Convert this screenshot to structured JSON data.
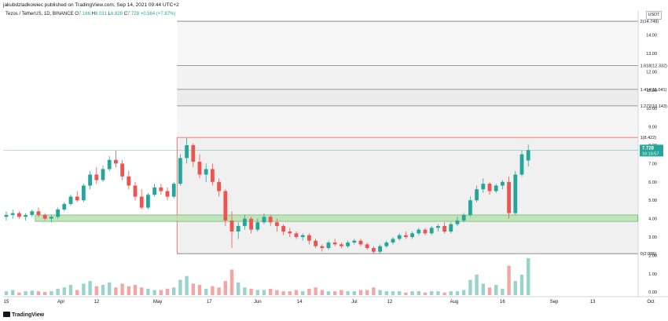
{
  "header": {
    "published": "jakubdzladkowiec published on TradingView.com, Sep 14, 2021 09:44 UTC+2",
    "symbol": "Tezos / TetherUS, 1D, BINANCE",
    "ohlc": {
      "o_label": "O",
      "o": "7.166",
      "h_label": "H",
      "h": "8.031",
      "l_label": "L",
      "l": "6.829",
      "c_label": "C",
      "c": "7.728",
      "change": "+0.564 (+7.87%)"
    },
    "currency": "USDT"
  },
  "footer": {
    "brand": "TradingView"
  },
  "colors": {
    "up": "#26a69a",
    "down": "#ef5350",
    "vol_up": "#9ad3cc",
    "vol_down": "#f5a6a4",
    "zone_fill": "#b7e1b0",
    "zone_stroke": "#4caf50",
    "fib_line": "#787b86",
    "fib_top": "#ef5350",
    "price_line": "#26a69a"
  },
  "chart_data": {
    "type": "candlestick",
    "title": "Tezos / TetherUS, 1D, BINANCE",
    "ylim": [
      -0.2,
      15.2
    ],
    "y_ticks": [
      "0.00",
      "1.00",
      "2.00",
      "3.00",
      "4.00",
      "5.00",
      "6.00",
      "7.00",
      "8.00",
      "9.00",
      "10.00",
      "11.00",
      "12.00",
      "13.00",
      "14.00"
    ],
    "x_ticks": [
      {
        "label": "15",
        "date": "2021-03-15"
      },
      {
        "label": "Apr",
        "date": "2021-04-01"
      },
      {
        "label": "12",
        "date": "2021-04-12"
      },
      {
        "label": "May",
        "date": "2021-05-01"
      },
      {
        "label": "17",
        "date": "2021-05-17"
      },
      {
        "label": "Jun",
        "date": "2021-06-01"
      },
      {
        "label": "14",
        "date": "2021-06-14"
      },
      {
        "label": "Jul",
        "date": "2021-07-01"
      },
      {
        "label": "12",
        "date": "2021-07-12"
      },
      {
        "label": "Aug",
        "date": "2021-08-01"
      },
      {
        "label": "16",
        "date": "2021-08-16"
      },
      {
        "label": "Sep",
        "date": "2021-09-01"
      },
      {
        "label": "13",
        "date": "2021-09-13"
      },
      {
        "label": "Oct",
        "date": "2021-10-01"
      }
    ],
    "last_price": {
      "value": 7.728,
      "label": "7.728",
      "countdown": "16:15:57"
    },
    "fib_levels": [
      {
        "ratio_label": "0(2.095)",
        "value": 2.095
      },
      {
        "ratio_label": "1(8.422)",
        "value": 8.422
      },
      {
        "ratio_label": "1.272(10.143)",
        "value": 10.143
      },
      {
        "ratio_label": "1.414(11.041)",
        "value": 11.041
      },
      {
        "ratio_label": "1.618(12.332)",
        "value": 12.332
      },
      {
        "ratio_label": "2(14.749)",
        "value": 14.749
      }
    ],
    "fib_start_date": "2021-05-07",
    "fib_end_date": "2021-09-27",
    "support_zone": {
      "low": 3.85,
      "high": 4.2,
      "start_date": "2021-03-24",
      "end_date": "2021-09-27"
    },
    "volume_scale_max": 3.2,
    "series": [
      {
        "name": "price",
        "unit": "USDT",
        "start_date": "2021-03-15",
        "interval_days": 2,
        "ohlc": [
          [
            4.1,
            4.4,
            3.9,
            4.2
          ],
          [
            4.2,
            4.5,
            4.0,
            4.3
          ],
          [
            4.3,
            4.4,
            4.0,
            4.1
          ],
          [
            4.1,
            4.3,
            3.9,
            4.2
          ],
          [
            4.2,
            4.5,
            4.1,
            4.4
          ],
          [
            4.4,
            4.6,
            4.1,
            4.2
          ],
          [
            4.2,
            4.3,
            3.9,
            4.0
          ],
          [
            4.0,
            4.2,
            3.8,
            4.1
          ],
          [
            4.1,
            4.6,
            4.0,
            4.5
          ],
          [
            4.5,
            4.9,
            4.4,
            4.8
          ],
          [
            4.8,
            5.3,
            4.7,
            5.2
          ],
          [
            5.2,
            5.5,
            4.9,
            5.0
          ],
          [
            5.0,
            5.9,
            4.9,
            5.8
          ],
          [
            5.8,
            6.6,
            5.6,
            6.4
          ],
          [
            6.4,
            6.8,
            5.9,
            6.1
          ],
          [
            6.1,
            6.9,
            6.0,
            6.7
          ],
          [
            6.7,
            7.4,
            6.6,
            7.2
          ],
          [
            7.2,
            7.7,
            6.8,
            7.0
          ],
          [
            7.0,
            7.2,
            6.1,
            6.3
          ],
          [
            6.3,
            6.6,
            5.6,
            5.8
          ],
          [
            5.8,
            6.0,
            5.0,
            5.2
          ],
          [
            5.2,
            5.6,
            4.5,
            4.6
          ],
          [
            4.6,
            5.4,
            4.5,
            5.3
          ],
          [
            5.3,
            5.9,
            5.2,
            5.7
          ],
          [
            5.7,
            5.9,
            5.3,
            5.5
          ],
          [
            5.5,
            5.7,
            5.0,
            5.2
          ],
          [
            5.2,
            6.0,
            5.1,
            5.9
          ],
          [
            5.9,
            7.5,
            5.8,
            7.3
          ],
          [
            7.3,
            8.4,
            7.0,
            8.0
          ],
          [
            8.0,
            8.1,
            6.8,
            7.1
          ],
          [
            7.1,
            7.5,
            6.2,
            6.4
          ],
          [
            6.4,
            7.0,
            6.0,
            6.7
          ],
          [
            6.7,
            7.0,
            5.8,
            6.0
          ],
          [
            6.0,
            6.2,
            5.2,
            5.5
          ],
          [
            5.5,
            5.6,
            3.6,
            3.9
          ],
          [
            3.9,
            4.4,
            2.4,
            3.3
          ],
          [
            3.3,
            3.8,
            2.9,
            3.6
          ],
          [
            3.6,
            4.2,
            3.4,
            4.0
          ],
          [
            4.0,
            4.1,
            3.2,
            3.4
          ],
          [
            3.4,
            4.0,
            3.3,
            3.8
          ],
          [
            3.8,
            4.3,
            3.7,
            4.1
          ],
          [
            4.1,
            4.2,
            3.6,
            3.8
          ],
          [
            3.8,
            4.0,
            3.3,
            3.6
          ],
          [
            3.6,
            3.7,
            3.1,
            3.3
          ],
          [
            3.3,
            3.5,
            3.0,
            3.2
          ],
          [
            3.2,
            3.3,
            2.9,
            3.0
          ],
          [
            3.0,
            3.2,
            2.8,
            3.1
          ],
          [
            3.1,
            3.2,
            2.6,
            2.8
          ],
          [
            2.8,
            2.9,
            2.4,
            2.5
          ],
          [
            2.5,
            2.6,
            2.2,
            2.4
          ],
          [
            2.4,
            2.8,
            2.3,
            2.7
          ],
          [
            2.7,
            2.9,
            2.5,
            2.6
          ],
          [
            2.6,
            2.7,
            2.4,
            2.5
          ],
          [
            2.5,
            2.8,
            2.4,
            2.7
          ],
          [
            2.7,
            2.9,
            2.6,
            2.8
          ],
          [
            2.8,
            2.9,
            2.5,
            2.6
          ],
          [
            2.6,
            2.7,
            2.3,
            2.4
          ],
          [
            2.4,
            2.5,
            2.1,
            2.2
          ],
          [
            2.2,
            2.6,
            2.1,
            2.5
          ],
          [
            2.5,
            2.8,
            2.4,
            2.7
          ],
          [
            2.7,
            3.0,
            2.6,
            2.9
          ],
          [
            2.9,
            3.2,
            2.8,
            3.1
          ],
          [
            3.1,
            3.3,
            2.9,
            3.0
          ],
          [
            3.0,
            3.3,
            2.9,
            3.2
          ],
          [
            3.2,
            3.5,
            3.1,
            3.4
          ],
          [
            3.4,
            3.5,
            3.1,
            3.2
          ],
          [
            3.2,
            3.6,
            3.1,
            3.5
          ],
          [
            3.5,
            3.7,
            3.3,
            3.6
          ],
          [
            3.6,
            3.8,
            3.2,
            3.3
          ],
          [
            3.3,
            3.8,
            3.2,
            3.7
          ],
          [
            3.7,
            4.1,
            3.6,
            3.9
          ],
          [
            3.9,
            4.3,
            3.8,
            4.2
          ],
          [
            4.2,
            5.2,
            4.1,
            5.0
          ],
          [
            5.0,
            5.8,
            4.9,
            5.6
          ],
          [
            5.6,
            6.2,
            5.4,
            5.9
          ],
          [
            5.9,
            6.0,
            5.3,
            5.5
          ],
          [
            5.5,
            5.9,
            5.4,
            5.8
          ],
          [
            5.8,
            6.1,
            5.6,
            6.0
          ],
          [
            6.0,
            6.3,
            4.0,
            4.3
          ],
          [
            4.3,
            6.6,
            4.2,
            6.4
          ],
          [
            6.4,
            7.7,
            6.3,
            7.5
          ],
          [
            7.166,
            8.031,
            6.829,
            7.728
          ]
        ],
        "volume": [
          0.3,
          0.4,
          0.2,
          0.3,
          0.35,
          0.3,
          0.25,
          0.3,
          0.5,
          0.6,
          0.8,
          0.4,
          0.9,
          1.1,
          0.7,
          0.8,
          1.0,
          0.6,
          0.9,
          0.7,
          0.8,
          0.6,
          0.5,
          0.4,
          0.4,
          0.5,
          0.6,
          1.2,
          1.5,
          0.9,
          0.8,
          0.5,
          0.7,
          0.6,
          1.1,
          2.0,
          1.0,
          0.6,
          0.5,
          0.4,
          0.4,
          0.5,
          0.4,
          0.3,
          0.3,
          0.4,
          0.3,
          0.5,
          0.6,
          0.4,
          0.3,
          0.3,
          0.4,
          0.3,
          0.3,
          0.4,
          0.4,
          0.6,
          0.4,
          0.3,
          0.3,
          0.3,
          0.2,
          0.3,
          0.3,
          0.2,
          0.3,
          0.3,
          0.2,
          0.3,
          0.3,
          0.4,
          1.2,
          1.6,
          0.9,
          0.6,
          0.8,
          0.5,
          2.3,
          1.1,
          1.6,
          2.9
        ]
      }
    ]
  }
}
